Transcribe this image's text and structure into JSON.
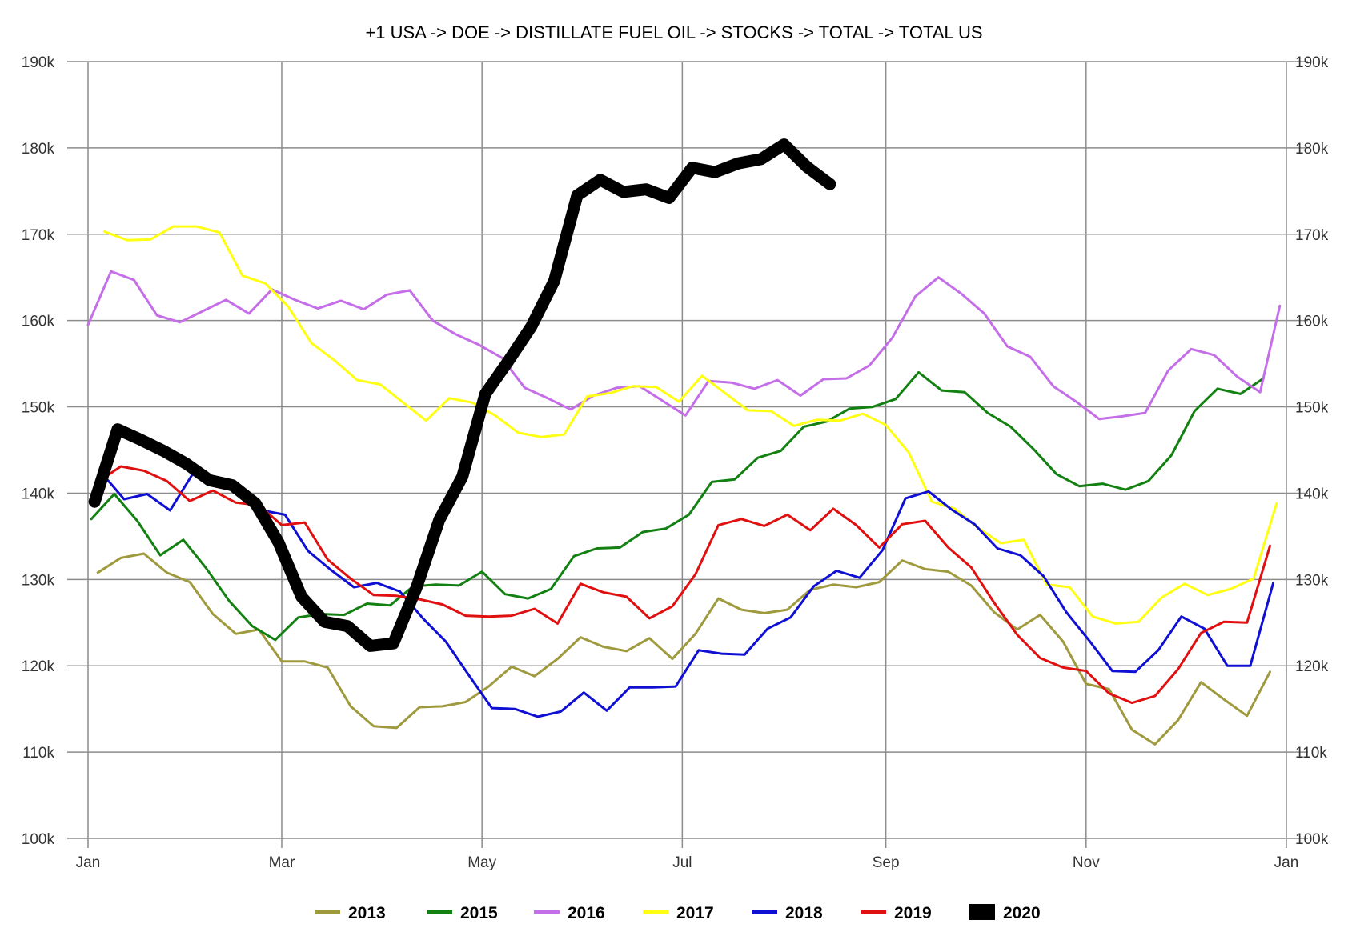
{
  "chart_data": {
    "type": "line",
    "title": "+1 USA -> DOE -> DISTILLATE FUEL OIL -> STOCKS -> TOTAL -> TOTAL US",
    "x_unit": "day_of_year",
    "x_ticks": [
      {
        "label": "Jan",
        "x": 1
      },
      {
        "label": "Mar",
        "x": 60
      },
      {
        "label": "May",
        "x": 121
      },
      {
        "label": "Jul",
        "x": 182
      },
      {
        "label": "Sep",
        "x": 244
      },
      {
        "label": "Nov",
        "x": 305
      },
      {
        "label": "Jan",
        "x": 366
      }
    ],
    "xlim": [
      1,
      366
    ],
    "ylim": [
      100000,
      190000
    ],
    "y_ticks": [
      {
        "label": "100k",
        "v": 100000
      },
      {
        "label": "110k",
        "v": 110000
      },
      {
        "label": "120k",
        "v": 120000
      },
      {
        "label": "130k",
        "v": 130000
      },
      {
        "label": "140k",
        "v": 140000
      },
      {
        "label": "150k",
        "v": 150000
      },
      {
        "label": "160k",
        "v": 160000
      },
      {
        "label": "170k",
        "v": 170000
      },
      {
        "label": "180k",
        "v": 180000
      },
      {
        "label": "190k",
        "v": 190000
      }
    ],
    "grid": true,
    "legend_position": "bottom",
    "series": [
      {
        "name": "2013",
        "color": "#a09a3e",
        "x": [
          4,
          11,
          18,
          25,
          32,
          39,
          46,
          53,
          60,
          67,
          74,
          81,
          88,
          95,
          102,
          109,
          116,
          123,
          130,
          137,
          144,
          151,
          158,
          165,
          172,
          179,
          186,
          193,
          200,
          207,
          214,
          221,
          228,
          235,
          242,
          249,
          256,
          263,
          270,
          277,
          284,
          291,
          298,
          305,
          312,
          319,
          326,
          333,
          340,
          347,
          354,
          361
        ],
        "values": [
          130800,
          132500,
          133000,
          130800,
          129700,
          126000,
          123700,
          124200,
          120500,
          120500,
          119800,
          115300,
          113000,
          112800,
          115200,
          115300,
          115800,
          117600,
          119900,
          118800,
          120800,
          123300,
          122200,
          121700,
          123200,
          120800,
          123700,
          127800,
          126500,
          126100,
          126500,
          128800,
          129400,
          129100,
          129700,
          132200,
          131200,
          130900,
          129300,
          126200,
          124200,
          125900,
          122800,
          117900,
          117300,
          112600,
          110900,
          113700,
          118100,
          116100,
          114200,
          119300
        ]
      },
      {
        "name": "2015",
        "color": "#128112",
        "x": [
          2,
          9,
          16,
          23,
          30,
          37,
          44,
          51,
          58,
          65,
          72,
          79,
          86,
          93,
          100,
          107,
          114,
          121,
          128,
          135,
          142,
          149,
          156,
          163,
          170,
          177,
          184,
          191,
          198,
          205,
          212,
          219,
          226,
          233,
          240,
          247,
          254,
          261,
          268,
          275,
          282,
          289,
          296,
          303,
          310,
          317,
          324,
          331,
          338,
          345,
          352,
          359
        ],
        "values": [
          137000,
          139900,
          136800,
          132800,
          134600,
          131300,
          127500,
          124600,
          123000,
          125600,
          126000,
          125900,
          127200,
          127000,
          129200,
          129400,
          129300,
          130900,
          128300,
          127800,
          128900,
          132700,
          133600,
          133700,
          135500,
          135900,
          137500,
          141300,
          141600,
          144100,
          144900,
          147700,
          148300,
          149800,
          150000,
          150900,
          154000,
          151900,
          151700,
          149300,
          147700,
          145100,
          142200,
          140800,
          141100,
          140400,
          141400,
          144400,
          149500,
          152100,
          151500,
          153300
        ]
      },
      {
        "name": "2016",
        "color": "#c46ee8",
        "x": [
          1,
          8,
          15,
          22,
          29,
          36,
          43,
          50,
          57,
          64,
          71,
          78,
          85,
          92,
          99,
          106,
          113,
          120,
          127,
          134,
          141,
          148,
          155,
          162,
          169,
          176,
          183,
          190,
          197,
          204,
          211,
          218,
          225,
          232,
          239,
          246,
          253,
          260,
          267,
          274,
          281,
          288,
          295,
          302,
          309,
          316,
          323,
          330,
          337,
          344,
          351,
          358,
          364
        ],
        "values": [
          159500,
          165700,
          164700,
          160600,
          159800,
          161100,
          162400,
          160800,
          163600,
          162400,
          161400,
          162300,
          161300,
          163000,
          163500,
          160000,
          158400,
          157200,
          155700,
          152200,
          151000,
          149700,
          151300,
          152200,
          152400,
          150700,
          149000,
          153000,
          152800,
          152100,
          153100,
          151300,
          153200,
          153300,
          154800,
          158000,
          162800,
          165000,
          163100,
          160800,
          157000,
          155800,
          152400,
          150600,
          148600,
          148900,
          149300,
          154200,
          156700,
          156000,
          153500,
          151700,
          161700
        ]
      },
      {
        "name": "2017",
        "color": "#ffff14",
        "x": [
          6,
          13,
          20,
          27,
          34,
          41,
          48,
          55,
          62,
          69,
          76,
          83,
          90,
          97,
          104,
          111,
          118,
          125,
          132,
          139,
          146,
          153,
          160,
          167,
          174,
          181,
          188,
          195,
          202,
          209,
          216,
          223,
          230,
          237,
          244,
          251,
          258,
          265,
          272,
          279,
          286,
          293,
          300,
          307,
          314,
          321,
          328,
          335,
          342,
          349,
          356,
          363
        ],
        "values": [
          170300,
          169300,
          169400,
          170900,
          170900,
          170200,
          165200,
          164300,
          161600,
          157400,
          155400,
          153100,
          152600,
          150500,
          148400,
          151000,
          150500,
          149000,
          147000,
          146500,
          146800,
          151200,
          151600,
          152400,
          152300,
          150600,
          153600,
          151600,
          149600,
          149500,
          147800,
          148500,
          148400,
          149200,
          147900,
          144700,
          139000,
          138200,
          136000,
          134200,
          134600,
          129400,
          129100,
          125700,
          124900,
          125100,
          127900,
          129500,
          128200,
          128900,
          130100,
          138800
        ]
      },
      {
        "name": "2018",
        "color": "#1010d4",
        "x": [
          5,
          12,
          19,
          26,
          33,
          40,
          47,
          54,
          61,
          68,
          75,
          82,
          89,
          96,
          103,
          110,
          117,
          124,
          131,
          138,
          145,
          152,
          159,
          166,
          173,
          180,
          187,
          194,
          201,
          208,
          215,
          222,
          229,
          236,
          243,
          250,
          257,
          264,
          271,
          278,
          285,
          292,
          299,
          306,
          313,
          320,
          327,
          334,
          341,
          348,
          355,
          362
        ],
        "values": [
          142400,
          139300,
          139900,
          138000,
          142300,
          141600,
          140200,
          138000,
          137500,
          133300,
          131100,
          129100,
          129600,
          128600,
          125500,
          122800,
          118900,
          115100,
          115000,
          114100,
          114700,
          116900,
          114800,
          117500,
          117500,
          117600,
          121800,
          121400,
          121300,
          124300,
          125600,
          129200,
          131000,
          130200,
          133400,
          139400,
          140200,
          138100,
          136400,
          133600,
          132800,
          130400,
          126200,
          122900,
          119400,
          119300,
          121800,
          125700,
          124300,
          120000,
          120000,
          129600
        ]
      },
      {
        "name": "2019",
        "color": "#e01010",
        "x": [
          4,
          11,
          18,
          25,
          32,
          39,
          46,
          53,
          60,
          67,
          74,
          81,
          88,
          95,
          102,
          109,
          116,
          123,
          130,
          137,
          144,
          151,
          158,
          165,
          172,
          179,
          186,
          193,
          200,
          207,
          214,
          221,
          228,
          235,
          242,
          249,
          256,
          263,
          270,
          277,
          284,
          291,
          298,
          305,
          312,
          319,
          326,
          333,
          340,
          347,
          354,
          361
        ],
        "values": [
          141300,
          143100,
          142600,
          141400,
          139100,
          140300,
          138900,
          138600,
          136300,
          136600,
          132300,
          130100,
          128200,
          128100,
          127700,
          127100,
          125800,
          125700,
          125800,
          126600,
          124900,
          129500,
          128500,
          128000,
          125500,
          126900,
          130600,
          136300,
          137000,
          136200,
          137500,
          135700,
          138200,
          136300,
          133700,
          136400,
          136800,
          133700,
          131400,
          127300,
          123600,
          120900,
          119800,
          119400,
          116800,
          115700,
          116500,
          119600,
          123800,
          125100,
          125000,
          133900
        ]
      },
      {
        "name": "2020",
        "color": "#000000",
        "x": [
          3,
          10,
          17,
          24,
          31,
          38,
          45,
          52,
          59,
          66,
          73,
          80,
          87,
          94,
          101,
          108,
          115,
          122,
          129,
          136,
          143,
          150,
          157,
          164,
          171,
          178,
          185,
          192,
          199,
          206,
          213,
          220,
          227
        ],
        "values": [
          139000,
          147400,
          146200,
          144900,
          143400,
          141500,
          140900,
          138800,
          134300,
          128000,
          125100,
          124600,
          122300,
          122600,
          129000,
          136900,
          141900,
          151500,
          155300,
          159300,
          164600,
          174500,
          176300,
          174900,
          175200,
          174200,
          177700,
          177200,
          178200,
          178700,
          180400,
          177800,
          175800
        ]
      }
    ]
  }
}
